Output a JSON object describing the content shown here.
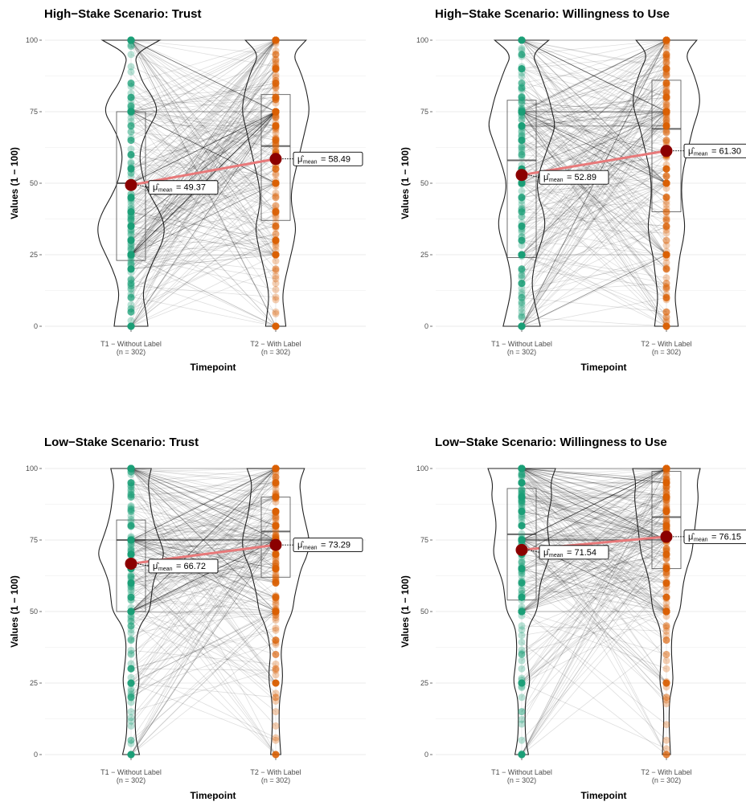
{
  "chart_data": [
    {
      "type": "violin-box-paired",
      "title": "High−Stake Scenario: Trust",
      "xlabel": "Timepoint",
      "ylabel": "Values (1 − 100)",
      "ylim": [
        0,
        100
      ],
      "yticks": [
        0,
        25,
        50,
        75,
        100
      ],
      "categories": [
        "T1 − Without Label\n(n = 302)",
        "T2 − With Label\n(n = 302)"
      ],
      "means": [
        49.37,
        58.49
      ],
      "mean_labels": [
        "49.37",
        "58.49"
      ],
      "box": [
        {
          "q1": 23,
          "median": 50,
          "q3": 75,
          "min": 0,
          "max": 100
        },
        {
          "q1": 37,
          "median": 63,
          "q3": 81,
          "min": 0,
          "max": 100
        }
      ],
      "violin_profile": [
        {
          "density": [
            0.5,
            0.45,
            0.35,
            0.4,
            0.55,
            0.75,
            0.95,
            1.0,
            0.85,
            0.6,
            0.4,
            0.3,
            0.25,
            0.35,
            0.55,
            0.8,
            0.65,
            0.35,
            0.2,
            0.1,
            0.85
          ]
        },
        {
          "density": [
            0.3,
            0.25,
            0.2,
            0.25,
            0.35,
            0.45,
            0.55,
            0.6,
            0.5,
            0.45,
            0.5,
            0.6,
            0.7,
            0.8,
            0.9,
            1.0,
            0.95,
            0.85,
            0.7,
            0.5,
            0.9
          ]
        }
      ]
    },
    {
      "type": "violin-box-paired",
      "title": "High−Stake Scenario: Willingness to Use",
      "xlabel": "Timepoint",
      "ylabel": "Values (1 − 100)",
      "ylim": [
        0,
        100
      ],
      "yticks": [
        0,
        25,
        50,
        75,
        100
      ],
      "categories": [
        "T1 − Without Label\n(n = 302)",
        "T2 − With Label\n(n = 302)"
      ],
      "means": [
        52.89,
        61.3
      ],
      "mean_labels": [
        "52.89",
        "61.30"
      ],
      "box": [
        {
          "q1": 24,
          "median": 58,
          "q3": 79,
          "min": 0,
          "max": 100
        },
        {
          "q1": 40,
          "median": 69,
          "q3": 86,
          "min": 0,
          "max": 100
        }
      ],
      "violin_profile": [
        {
          "density": [
            0.55,
            0.45,
            0.35,
            0.3,
            0.35,
            0.45,
            0.6,
            0.7,
            0.65,
            0.5,
            0.45,
            0.55,
            0.7,
            0.85,
            1.0,
            0.9,
            0.8,
            0.65,
            0.5,
            0.3,
            0.8
          ]
        },
        {
          "density": [
            0.35,
            0.3,
            0.25,
            0.3,
            0.35,
            0.4,
            0.5,
            0.55,
            0.5,
            0.45,
            0.45,
            0.5,
            0.6,
            0.7,
            0.8,
            0.95,
            1.0,
            0.9,
            0.75,
            0.55,
            0.9
          ]
        }
      ]
    },
    {
      "type": "violin-box-paired",
      "title": "Low−Stake Scenario: Trust",
      "xlabel": "Timepoint",
      "ylabel": "Values (1 − 100)",
      "ylim": [
        0,
        100
      ],
      "yticks": [
        0,
        25,
        50,
        75,
        100
      ],
      "categories": [
        "T1 − Without Label\n(n = 302)",
        "T2 − With Label\n(n = 302)"
      ],
      "means": [
        66.72,
        73.29
      ],
      "mean_labels": [
        "66.72",
        "73.29"
      ],
      "box": [
        {
          "q1": 50,
          "median": 75,
          "q3": 82,
          "min": 0,
          "max": 100
        },
        {
          "q1": 62,
          "median": 78,
          "q3": 90,
          "min": 0,
          "max": 100
        }
      ],
      "violin_profile": [
        {
          "density": [
            0.25,
            0.15,
            0.12,
            0.12,
            0.15,
            0.25,
            0.2,
            0.15,
            0.15,
            0.25,
            0.55,
            0.6,
            0.65,
            0.8,
            1.0,
            0.85,
            0.7,
            0.6,
            0.55,
            0.5,
            0.6
          ]
        },
        {
          "density": [
            0.15,
            0.12,
            0.1,
            0.1,
            0.12,
            0.2,
            0.2,
            0.15,
            0.2,
            0.3,
            0.5,
            0.55,
            0.65,
            0.75,
            0.95,
            1.0,
            0.9,
            0.8,
            0.75,
            0.7,
            0.85
          ]
        }
      ]
    },
    {
      "type": "violin-box-paired",
      "title": "Low−Stake Scenario: Willingness to Use",
      "xlabel": "Timepoint",
      "ylabel": "Values (1 − 100)",
      "ylim": [
        0,
        100
      ],
      "yticks": [
        0,
        25,
        50,
        75,
        100
      ],
      "categories": [
        "T1 − Without Label\n(n = 302)",
        "T2 − With Label\n(n = 302)"
      ],
      "means": [
        71.54,
        76.15
      ],
      "mean_labels": [
        "71.54",
        "76.15"
      ],
      "box": [
        {
          "q1": 54,
          "median": 77,
          "q3": 93,
          "min": 0,
          "max": 100
        },
        {
          "q1": 65,
          "median": 83,
          "q3": 99,
          "min": 0,
          "max": 100
        }
      ],
      "violin_profile": [
        {
          "density": [
            0.2,
            0.12,
            0.1,
            0.1,
            0.12,
            0.25,
            0.2,
            0.15,
            0.15,
            0.2,
            0.45,
            0.5,
            0.55,
            0.7,
            0.85,
            0.8,
            0.75,
            0.8,
            0.9,
            0.85,
            1.0
          ]
        },
        {
          "density": [
            0.12,
            0.1,
            0.08,
            0.08,
            0.1,
            0.2,
            0.18,
            0.15,
            0.15,
            0.2,
            0.4,
            0.45,
            0.5,
            0.6,
            0.75,
            0.8,
            0.85,
            0.9,
            0.95,
            0.9,
            1.0
          ]
        }
      ]
    }
  ],
  "style": {
    "t1_color": "#1b9e77",
    "t2_color": "#d95f02",
    "mean_color": "#8b0000",
    "mean_line_color": "#e8797a",
    "grid_color": "#ebebeb"
  }
}
